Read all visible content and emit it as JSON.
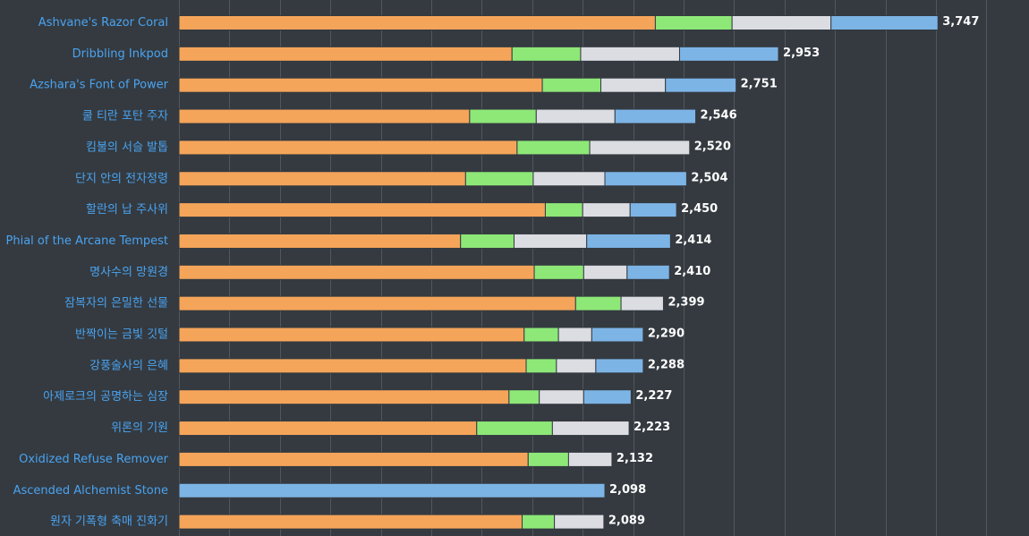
{
  "chart_data": {
    "type": "bar",
    "orientation": "horizontal",
    "stacked": true,
    "grid": true,
    "xlim": [
      0,
      4000
    ],
    "series_colors": [
      "#f5a55a",
      "#8ee878",
      "#dcdde2",
      "#7db4e6"
    ],
    "categories": [
      "Ashvane's Razor Coral",
      "Dribbling Inkpod",
      "Azshara's Font of Power",
      "쿨 티란 포탄 주자",
      "킴불의 서슬 발톱",
      "단지 안의 전자정령",
      "할란의 납 주사위",
      "Phial of the Arcane Tempest",
      "명사수의 망원경",
      "잠복자의 은밀한 선물",
      "반짝이는 금빛 깃털",
      "강풍술사의 은혜",
      "아제로크의 공명하는 심장",
      "위론의 기원",
      "Oxidized Refuse Remover",
      "Ascended Alchemist Stone",
      "원자 기폭형 축매 진화기"
    ],
    "segments": [
      [
        2360,
        380,
        490,
        530
      ],
      [
        1650,
        340,
        490,
        490
      ],
      [
        1800,
        290,
        320,
        350
      ],
      [
        1440,
        330,
        390,
        400
      ],
      [
        1675,
        360,
        495,
        0
      ],
      [
        1420,
        335,
        355,
        405
      ],
      [
        1815,
        185,
        235,
        230
      ],
      [
        1395,
        265,
        360,
        415
      ],
      [
        1760,
        245,
        215,
        210
      ],
      [
        1965,
        225,
        210,
        0
      ],
      [
        1710,
        170,
        165,
        255
      ],
      [
        1720,
        150,
        195,
        235
      ],
      [
        1635,
        150,
        220,
        235
      ],
      [
        1475,
        375,
        380,
        0
      ],
      [
        1730,
        200,
        215,
        0
      ],
      [
        0,
        0,
        0,
        2110
      ],
      [
        1700,
        160,
        245,
        0
      ]
    ],
    "totals": [
      "3,747",
      "2,953",
      "2,751",
      "2,546",
      "2,520",
      "2,504",
      "2,450",
      "2,414",
      "2,410",
      "2,399",
      "2,290",
      "2,288",
      "2,227",
      "2,223",
      "2,132",
      "2,098",
      "2,089"
    ]
  }
}
